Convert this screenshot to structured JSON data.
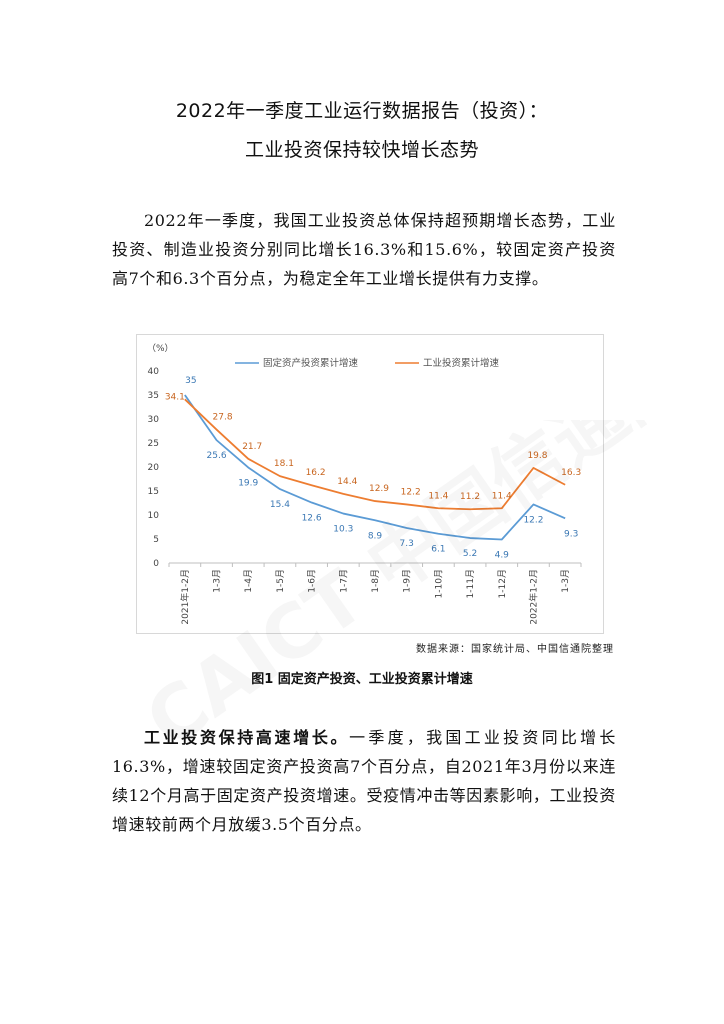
{
  "document": {
    "title_line1": "2022年一季度工业运行数据报告（投资）：",
    "title_line2": "工业投资保持较快增长态势",
    "paragraph1": "2022年一季度，我国工业投资总体保持超预期增长态势，工业投资、制造业投资分别同比增长16.3%和15.6%，较固定资产投资高7个和6.3个百分点，为稳定全年工业增长提供有力支撑。",
    "paragraph2_lead": "工业投资保持高速增长。",
    "paragraph2_body": "一季度，我国工业投资同比增长16.3%，增速较固定资产投资高7个百分点，自2021年3月份以来连续12个月高于固定资产投资增速。受疫情冲击等因素影响，工业投资增速较前两个月放缓3.5个百分点。",
    "source": "数据来源：国家统计局、中国信通院整理",
    "caption": "图1  固定资产投资、工业投资累计增速",
    "watermark": "CAICT 中国信通院"
  },
  "chart_data": {
    "type": "line",
    "unit_label": "（%）",
    "categories": [
      "2021年1-2月",
      "1-3月",
      "1-4月",
      "1-5月",
      "1-6月",
      "1-7月",
      "1-8月",
      "1-9月",
      "1-10月",
      "1-11月",
      "1-12月",
      "2022年1-2月",
      "1-3月"
    ],
    "series": [
      {
        "name": "固定资产投资累计增速",
        "color": "#5b9bd5",
        "values": [
          35,
          25.6,
          19.9,
          15.4,
          12.6,
          10.3,
          8.9,
          7.3,
          6.1,
          5.2,
          4.9,
          12.2,
          9.3
        ],
        "labels": [
          "35",
          "25.6",
          "19.9",
          "15.4",
          "12.6",
          "10.3",
          "8.9",
          "7.3",
          "6.1",
          "5.2",
          "4.9",
          "12.2",
          "9.3"
        ]
      },
      {
        "name": "工业投资累计增速",
        "color": "#ed7d31",
        "values": [
          34.1,
          27.8,
          21.7,
          18.1,
          16.2,
          14.4,
          12.9,
          12.2,
          11.4,
          11.2,
          11.4,
          19.8,
          16.3
        ],
        "labels": [
          "34.1",
          "27.8",
          "21.7",
          "18.1",
          "16.2",
          "14.4",
          "12.9",
          "12.2",
          "11.4",
          "11.2",
          "11.4",
          "19.8",
          "16.3"
        ]
      }
    ],
    "yticks": [
      "0",
      "5",
      "10",
      "15",
      "20",
      "25",
      "30",
      "35",
      "40"
    ],
    "ylim": [
      0,
      40
    ],
    "grid": false,
    "legend_position": "top"
  }
}
